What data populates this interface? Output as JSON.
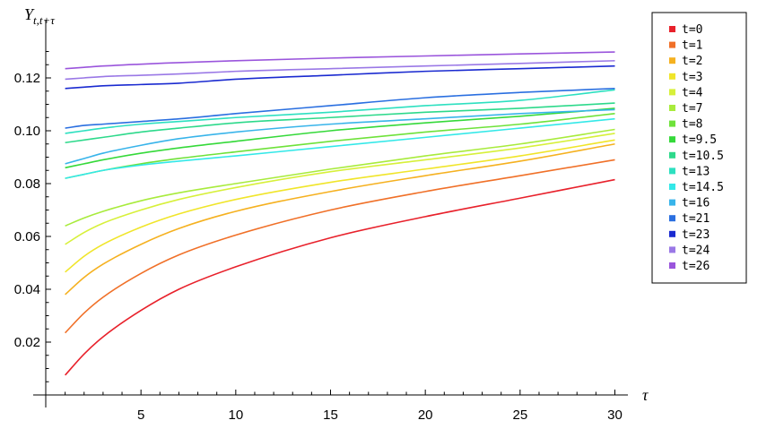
{
  "chart_data": {
    "type": "line",
    "title": "",
    "xlabel": "τ",
    "ylabel": "Yt,t+τ",
    "ylabel_parts": {
      "main": "Y",
      "sub": "t,t+τ"
    },
    "xlim": [
      0,
      30
    ],
    "ylim": [
      0,
      0.135
    ],
    "x_ticks": [
      5,
      10,
      15,
      20,
      25,
      30
    ],
    "x_tick_labels": [
      "5",
      "10",
      "15",
      "20",
      "25",
      "30"
    ],
    "y_ticks": [
      0.02,
      0.04,
      0.06,
      0.08,
      0.1,
      0.12
    ],
    "y_tick_labels": [
      "0.02",
      "0.04",
      "0.06",
      "0.08",
      "0.10",
      "0.12"
    ],
    "grid": false,
    "legend_position": "right",
    "x": [
      1,
      2,
      3,
      5,
      7,
      10,
      15,
      20,
      25,
      30
    ],
    "series": [
      {
        "name": "t=0",
        "color": "#e8212b",
        "values": [
          0.0075,
          0.0155,
          0.022,
          0.032,
          0.04,
          0.0485,
          0.0595,
          0.0675,
          0.0745,
          0.0815
        ]
      },
      {
        "name": "t=1",
        "color": "#f07028",
        "values": [
          0.0235,
          0.031,
          0.037,
          0.046,
          0.053,
          0.0605,
          0.07,
          0.077,
          0.083,
          0.089
        ]
      },
      {
        "name": "t=2",
        "color": "#f5b120",
        "values": [
          0.038,
          0.0445,
          0.0495,
          0.057,
          0.063,
          0.0695,
          0.077,
          0.083,
          0.0885,
          0.095
        ]
      },
      {
        "name": "t=3",
        "color": "#f0e52a",
        "values": [
          0.0465,
          0.0525,
          0.057,
          0.0635,
          0.0685,
          0.074,
          0.0805,
          0.0855,
          0.0905,
          0.0965
        ]
      },
      {
        "name": "t=4",
        "color": "#d7f03a",
        "values": [
          0.057,
          0.0615,
          0.065,
          0.07,
          0.074,
          0.0785,
          0.0845,
          0.089,
          0.0935,
          0.099
        ]
      },
      {
        "name": "t=7",
        "color": "#a8eb3c",
        "values": [
          0.064,
          0.067,
          0.0695,
          0.0735,
          0.0765,
          0.08,
          0.0855,
          0.0905,
          0.095,
          0.1005
        ]
      },
      {
        "name": "t=8",
        "color": "#6ee23a",
        "values": [
          0.082,
          0.0835,
          0.085,
          0.0875,
          0.0895,
          0.092,
          0.096,
          0.0995,
          0.1025,
          0.1065
        ]
      },
      {
        "name": "t=9.5",
        "color": "#35d93a",
        "values": [
          0.086,
          0.0875,
          0.089,
          0.0915,
          0.0935,
          0.096,
          0.1,
          0.103,
          0.1055,
          0.1085
        ]
      },
      {
        "name": "t=10.5",
        "color": "#2dd98b",
        "values": [
          0.0955,
          0.0965,
          0.0975,
          0.0995,
          0.101,
          0.103,
          0.105,
          0.107,
          0.1085,
          0.1105
        ]
      },
      {
        "name": "t=13",
        "color": "#2de0c0",
        "values": [
          0.099,
          0.1,
          0.101,
          0.1025,
          0.1035,
          0.105,
          0.107,
          0.1095,
          0.1115,
          0.1155
        ]
      },
      {
        "name": "t=14.5",
        "color": "#33e8e8",
        "values": [
          0.082,
          0.0835,
          0.085,
          0.087,
          0.0885,
          0.0905,
          0.094,
          0.0975,
          0.101,
          0.1045
        ]
      },
      {
        "name": "t=16",
        "color": "#38b4ea",
        "values": [
          0.0875,
          0.0895,
          0.0915,
          0.0945,
          0.097,
          0.0995,
          0.1025,
          0.1045,
          0.1065,
          0.108
        ]
      },
      {
        "name": "t=21",
        "color": "#2a6fe0",
        "values": [
          0.101,
          0.102,
          0.1025,
          0.1035,
          0.1045,
          0.1065,
          0.1095,
          0.1125,
          0.1145,
          0.116
        ]
      },
      {
        "name": "t=23",
        "color": "#1a2ad0",
        "values": [
          0.116,
          0.1165,
          0.117,
          0.1175,
          0.118,
          0.1195,
          0.121,
          0.1225,
          0.1235,
          0.1245
        ]
      },
      {
        "name": "t=24",
        "color": "#9a78e6",
        "values": [
          0.1195,
          0.12,
          0.1205,
          0.121,
          0.1215,
          0.1225,
          0.1235,
          0.1245,
          0.1255,
          0.1265
        ]
      },
      {
        "name": "t=26",
        "color": "#9a55dc",
        "values": [
          0.1235,
          0.124,
          0.1245,
          0.1252,
          0.1258,
          0.1265,
          0.1275,
          0.1283,
          0.1291,
          0.1298
        ]
      }
    ]
  }
}
